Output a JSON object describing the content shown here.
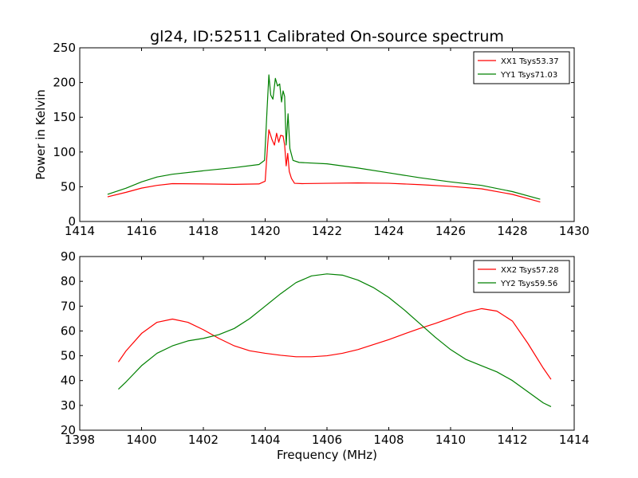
{
  "chart_data": [
    {
      "type": "line",
      "title": "gl24, ID:52511 Calibrated On-source spectrum",
      "xlabel": "",
      "ylabel": "Power in Kelvin",
      "xlim": [
        1414,
        1430
      ],
      "ylim": [
        0,
        250
      ],
      "xticks": [
        1414,
        1416,
        1418,
        1420,
        1422,
        1424,
        1426,
        1428,
        1430
      ],
      "yticks": [
        0,
        50,
        100,
        150,
        200,
        250
      ],
      "legend_position": "top-right",
      "series": [
        {
          "name": "XX1 Tsys53.37",
          "color": "#ff0000",
          "points": [
            [
              1414.9,
              35.5
            ],
            [
              1415.5,
              42
            ],
            [
              1416.0,
              48
            ],
            [
              1416.5,
              52
            ],
            [
              1417.0,
              54.5
            ],
            [
              1418.0,
              54
            ],
            [
              1419.0,
              53.5
            ],
            [
              1419.8,
              54
            ],
            [
              1420.0,
              58
            ],
            [
              1420.08,
              110
            ],
            [
              1420.12,
              132
            ],
            [
              1420.22,
              118
            ],
            [
              1420.3,
              110
            ],
            [
              1420.37,
              127
            ],
            [
              1420.44,
              114
            ],
            [
              1420.5,
              124
            ],
            [
              1420.58,
              123
            ],
            [
              1420.63,
              110
            ],
            [
              1420.68,
              80
            ],
            [
              1420.73,
              98
            ],
            [
              1420.78,
              72
            ],
            [
              1420.85,
              62
            ],
            [
              1420.95,
              55
            ],
            [
              1421.2,
              54.5
            ],
            [
              1422.0,
              55
            ],
            [
              1423.0,
              55.5
            ],
            [
              1424.0,
              55
            ],
            [
              1425.0,
              53
            ],
            [
              1426.0,
              50.5
            ],
            [
              1427.0,
              47
            ],
            [
              1428.0,
              39
            ],
            [
              1428.9,
              28
            ]
          ]
        },
        {
          "name": "YY1 Tsys71.03",
          "color": "#008000",
          "points": [
            [
              1414.9,
              39
            ],
            [
              1415.5,
              48
            ],
            [
              1416.0,
              57
            ],
            [
              1416.5,
              64
            ],
            [
              1417.0,
              68
            ],
            [
              1418.0,
              73
            ],
            [
              1419.0,
              77.5
            ],
            [
              1419.8,
              82
            ],
            [
              1419.98,
              88
            ],
            [
              1420.06,
              160
            ],
            [
              1420.12,
              211
            ],
            [
              1420.18,
              182
            ],
            [
              1420.25,
              176
            ],
            [
              1420.33,
              206
            ],
            [
              1420.4,
              195
            ],
            [
              1420.47,
              198
            ],
            [
              1420.53,
              172
            ],
            [
              1420.58,
              188
            ],
            [
              1420.63,
              180
            ],
            [
              1420.68,
              110
            ],
            [
              1420.74,
              155
            ],
            [
              1420.8,
              105
            ],
            [
              1420.9,
              88
            ],
            [
              1421.1,
              85
            ],
            [
              1422.0,
              83
            ],
            [
              1423.0,
              77
            ],
            [
              1424.0,
              70
            ],
            [
              1425.0,
              63
            ],
            [
              1426.0,
              57
            ],
            [
              1427.0,
              52
            ],
            [
              1428.0,
              43
            ],
            [
              1428.9,
              32
            ]
          ]
        }
      ]
    },
    {
      "type": "line",
      "title": "",
      "xlabel": "Frequency (MHz)",
      "ylabel": "",
      "xlim": [
        1398,
        1414
      ],
      "ylim": [
        20,
        90
      ],
      "xticks": [
        1398,
        1400,
        1402,
        1404,
        1406,
        1408,
        1410,
        1412,
        1414
      ],
      "yticks": [
        20,
        30,
        40,
        50,
        60,
        70,
        80,
        90
      ],
      "legend_position": "top-right",
      "series": [
        {
          "name": "XX2 Tsys57.28",
          "color": "#ff0000",
          "points": [
            [
              1399.25,
              47.5
            ],
            [
              1399.5,
              52
            ],
            [
              1400.0,
              59
            ],
            [
              1400.5,
              63.5
            ],
            [
              1401.0,
              64.8
            ],
            [
              1401.5,
              63.5
            ],
            [
              1402.0,
              60.5
            ],
            [
              1402.5,
              57
            ],
            [
              1403.0,
              54
            ],
            [
              1403.5,
              52
            ],
            [
              1404.0,
              51
            ],
            [
              1404.5,
              50.2
            ],
            [
              1405.0,
              49.6
            ],
            [
              1405.5,
              49.6
            ],
            [
              1406.0,
              50
            ],
            [
              1406.5,
              51
            ],
            [
              1407.0,
              52.5
            ],
            [
              1407.5,
              54.5
            ],
            [
              1408.0,
              56.5
            ],
            [
              1408.5,
              58.8
            ],
            [
              1409.0,
              61
            ],
            [
              1409.5,
              63
            ],
            [
              1410.0,
              65.2
            ],
            [
              1410.5,
              67.5
            ],
            [
              1411.0,
              69
            ],
            [
              1411.5,
              68
            ],
            [
              1412.0,
              64
            ],
            [
              1412.5,
              55
            ],
            [
              1413.0,
              45
            ],
            [
              1413.25,
              40.5
            ]
          ]
        },
        {
          "name": "YY2 Tsys59.56",
          "color": "#008000",
          "points": [
            [
              1399.25,
              36.5
            ],
            [
              1399.5,
              39.5
            ],
            [
              1400.0,
              46
            ],
            [
              1400.5,
              51
            ],
            [
              1401.0,
              54
            ],
            [
              1401.5,
              56
            ],
            [
              1402.0,
              57
            ],
            [
              1402.5,
              58.5
            ],
            [
              1403.0,
              61
            ],
            [
              1403.5,
              65
            ],
            [
              1404.0,
              70
            ],
            [
              1404.5,
              75
            ],
            [
              1405.0,
              79.5
            ],
            [
              1405.5,
              82.2
            ],
            [
              1406.0,
              83
            ],
            [
              1406.5,
              82.5
            ],
            [
              1407.0,
              80.5
            ],
            [
              1407.5,
              77.5
            ],
            [
              1408.0,
              73.5
            ],
            [
              1408.5,
              68.5
            ],
            [
              1409.0,
              63
            ],
            [
              1409.5,
              57.5
            ],
            [
              1410.0,
              52.5
            ],
            [
              1410.5,
              48.5
            ],
            [
              1411.0,
              46
            ],
            [
              1411.5,
              43.5
            ],
            [
              1412.0,
              40
            ],
            [
              1412.5,
              35.5
            ],
            [
              1413.0,
              31
            ],
            [
              1413.25,
              29.5
            ]
          ]
        }
      ]
    }
  ]
}
